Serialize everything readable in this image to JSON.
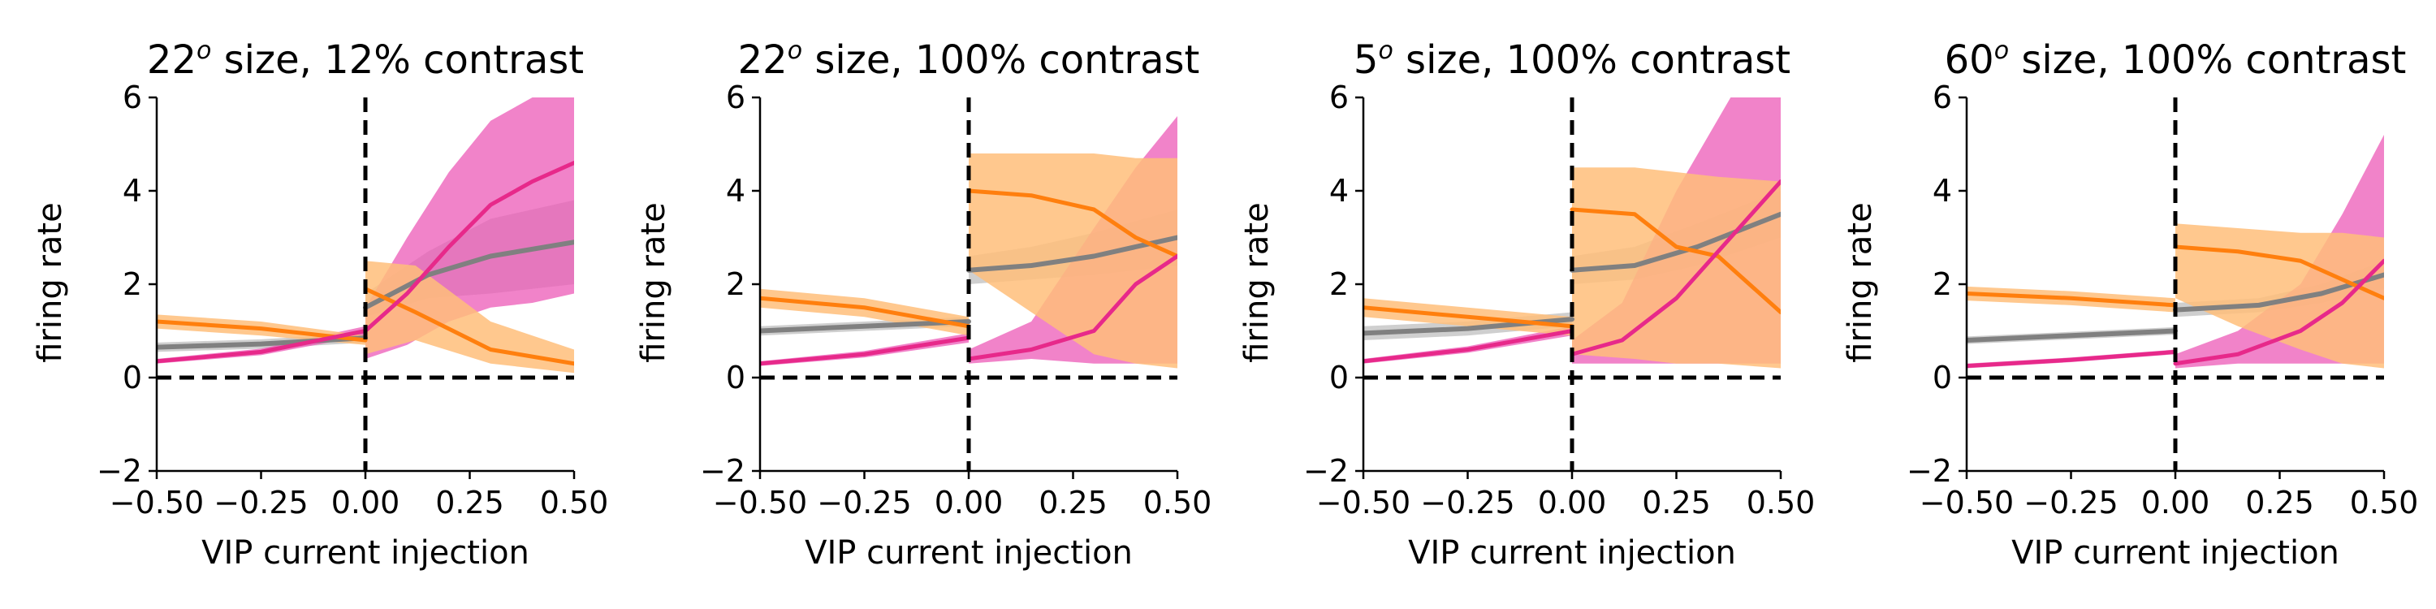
{
  "colors": {
    "gray": "#808080",
    "gray_band": "#bfbfbf",
    "orange": "#ff7f0e",
    "orange_band": "#ffbe7a",
    "magenta": "#e7298a",
    "magenta_band": "#ec5ab7",
    "overlap_band": "#f2607a",
    "axis": "#000000",
    "dashed": "#000000"
  },
  "chart_data": [
    {
      "type": "line",
      "title_main": "22",
      "title_sup": "o",
      "title_rest": " size, 12% contrast",
      "xlabel": "VIP current injection",
      "ylabel": "firing rate",
      "xlim": [
        -0.5,
        0.5
      ],
      "ylim": [
        -2,
        6
      ],
      "xticks": [
        "−0.50",
        "−0.25",
        "0.00",
        "0.25",
        "0.50"
      ],
      "yticks": [
        "−2",
        "0",
        "2",
        "4",
        "6"
      ],
      "series": [
        {
          "color": "gray",
          "neg": {
            "x": [
              -0.5,
              -0.25,
              0
            ],
            "y": [
              0.65,
              0.72,
              0.85
            ],
            "lo": [
              0.55,
              0.62,
              0.75
            ],
            "hi": [
              0.75,
              0.82,
              0.95
            ]
          },
          "pos": {
            "x": [
              0,
              0.15,
              0.3,
              0.5
            ],
            "y": [
              1.5,
              2.2,
              2.6,
              2.9
            ],
            "lo": [
              1.3,
              1.7,
              1.8,
              2.0
            ],
            "hi": [
              1.8,
              2.7,
              3.4,
              3.8
            ]
          }
        },
        {
          "color": "orange",
          "neg": {
            "x": [
              -0.5,
              -0.25,
              0
            ],
            "y": [
              1.2,
              1.05,
              0.8
            ],
            "lo": [
              1.05,
              0.9,
              0.7
            ],
            "hi": [
              1.35,
              1.2,
              0.9
            ]
          },
          "pos": {
            "x": [
              0,
              0.12,
              0.3,
              0.5
            ],
            "y": [
              1.9,
              1.4,
              0.6,
              0.3
            ],
            "lo": [
              0.5,
              0.8,
              0.3,
              0.1
            ],
            "hi": [
              2.5,
              2.4,
              1.2,
              0.6
            ]
          }
        },
        {
          "color": "magenta",
          "neg": {
            "x": [
              -0.5,
              -0.25,
              0
            ],
            "y": [
              0.35,
              0.55,
              1.0
            ],
            "lo": [
              0.3,
              0.48,
              0.9
            ],
            "hi": [
              0.4,
              0.62,
              1.1
            ]
          },
          "pos": {
            "x": [
              0,
              0.1,
              0.2,
              0.3,
              0.4,
              0.5
            ],
            "y": [
              1.0,
              1.8,
              2.8,
              3.7,
              4.2,
              4.6
            ],
            "lo": [
              0.4,
              0.7,
              1.2,
              1.5,
              1.6,
              1.8
            ],
            "hi": [
              1.5,
              3.0,
              4.4,
              5.5,
              6.0,
              6.5
            ]
          }
        }
      ]
    },
    {
      "type": "line",
      "title_main": "22",
      "title_sup": "o",
      "title_rest": " size, 100% contrast",
      "xlabel": "VIP current injection",
      "ylabel": "firing rate",
      "xlim": [
        -0.5,
        0.5
      ],
      "ylim": [
        -2,
        6
      ],
      "xticks": [
        "−0.50",
        "−0.25",
        "0.00",
        "0.25",
        "0.50"
      ],
      "yticks": [
        "−2",
        "0",
        "2",
        "4",
        "6"
      ],
      "series": [
        {
          "color": "gray",
          "neg": {
            "x": [
              -0.5,
              -0.25,
              0
            ],
            "y": [
              1.0,
              1.1,
              1.2
            ],
            "lo": [
              0.9,
              1.0,
              1.1
            ],
            "hi": [
              1.1,
              1.2,
              1.3
            ]
          },
          "pos": {
            "x": [
              0,
              0.15,
              0.3,
              0.5
            ],
            "y": [
              2.3,
              2.4,
              2.6,
              3.0
            ],
            "lo": [
              2.0,
              2.1,
              2.2,
              2.4
            ],
            "hi": [
              2.6,
              2.8,
              3.1,
              3.6
            ]
          }
        },
        {
          "color": "orange",
          "neg": {
            "x": [
              -0.5,
              -0.25,
              0
            ],
            "y": [
              1.7,
              1.5,
              1.1
            ],
            "lo": [
              1.5,
              1.3,
              0.9
            ],
            "hi": [
              1.9,
              1.7,
              1.3
            ]
          },
          "pos": {
            "x": [
              0,
              0.15,
              0.3,
              0.4,
              0.5
            ],
            "y": [
              4.0,
              3.9,
              3.6,
              3.0,
              2.6
            ],
            "lo": [
              2.3,
              1.4,
              0.5,
              0.3,
              0.2
            ],
            "hi": [
              4.8,
              4.8,
              4.8,
              4.7,
              4.7
            ]
          }
        },
        {
          "color": "magenta",
          "neg": {
            "x": [
              -0.5,
              -0.25,
              0
            ],
            "y": [
              0.3,
              0.5,
              0.85
            ],
            "lo": [
              0.25,
              0.43,
              0.75
            ],
            "hi": [
              0.35,
              0.57,
              0.95
            ]
          },
          "pos": {
            "x": [
              0,
              0.15,
              0.3,
              0.4,
              0.5
            ],
            "y": [
              0.4,
              0.6,
              1.0,
              2.0,
              2.6
            ],
            "lo": [
              0.3,
              0.4,
              0.3,
              0.3,
              0.3
            ],
            "hi": [
              0.6,
              1.2,
              3.2,
              4.5,
              5.6
            ]
          }
        }
      ]
    },
    {
      "type": "line",
      "title_main": "5",
      "title_sup": "o",
      "title_rest": " size, 100% contrast",
      "xlabel": "VIP current injection",
      "ylabel": "firing rate",
      "xlim": [
        -0.5,
        0.5
      ],
      "ylim": [
        -2,
        6
      ],
      "xticks": [
        "−0.50",
        "−0.25",
        "0.00",
        "0.25",
        "0.50"
      ],
      "yticks": [
        "−2",
        "0",
        "2",
        "4",
        "6"
      ],
      "series": [
        {
          "color": "gray",
          "neg": {
            "x": [
              -0.5,
              -0.25,
              0
            ],
            "y": [
              0.95,
              1.05,
              1.25
            ],
            "lo": [
              0.8,
              0.9,
              1.1
            ],
            "hi": [
              1.1,
              1.2,
              1.4
            ]
          },
          "pos": {
            "x": [
              0,
              0.15,
              0.3,
              0.5
            ],
            "y": [
              2.3,
              2.4,
              2.8,
              3.5
            ],
            "lo": [
              2.0,
              2.1,
              2.4,
              3.0
            ],
            "hi": [
              2.6,
              2.8,
              3.3,
              4.0
            ]
          }
        },
        {
          "color": "orange",
          "neg": {
            "x": [
              -0.5,
              -0.25,
              0
            ],
            "y": [
              1.5,
              1.3,
              1.1
            ],
            "lo": [
              1.3,
              1.1,
              0.9
            ],
            "hi": [
              1.7,
              1.5,
              1.3
            ]
          },
          "pos": {
            "x": [
              0,
              0.15,
              0.25,
              0.35,
              0.5
            ],
            "y": [
              3.6,
              3.5,
              2.8,
              2.6,
              1.4
            ],
            "lo": [
              0.5,
              0.4,
              0.3,
              0.3,
              0.2
            ],
            "hi": [
              4.5,
              4.5,
              4.4,
              4.3,
              4.2
            ]
          }
        },
        {
          "color": "magenta",
          "neg": {
            "x": [
              -0.5,
              -0.25,
              0
            ],
            "y": [
              0.35,
              0.6,
              1.0
            ],
            "lo": [
              0.3,
              0.53,
              0.9
            ],
            "hi": [
              0.4,
              0.67,
              1.1
            ]
          },
          "pos": {
            "x": [
              0,
              0.12,
              0.25,
              0.38,
              0.5
            ],
            "y": [
              0.5,
              0.8,
              1.7,
              3.0,
              4.2
            ],
            "lo": [
              0.3,
              0.3,
              0.3,
              0.3,
              0.3
            ],
            "hi": [
              0.8,
              1.6,
              4.0,
              6.0,
              7.0
            ]
          }
        }
      ]
    },
    {
      "type": "line",
      "title_main": "60",
      "title_sup": "o",
      "title_rest": " size, 100% contrast",
      "xlabel": "VIP current injection",
      "ylabel": "firing rate",
      "xlim": [
        -0.5,
        0.5
      ],
      "ylim": [
        -2,
        6
      ],
      "xticks": [
        "−0.50",
        "−0.25",
        "0.00",
        "0.25",
        "0.50"
      ],
      "yticks": [
        "−2",
        "0",
        "2",
        "4",
        "6"
      ],
      "series": [
        {
          "color": "gray",
          "neg": {
            "x": [
              -0.5,
              -0.25,
              0
            ],
            "y": [
              0.8,
              0.9,
              1.0
            ],
            "lo": [
              0.72,
              0.82,
              0.92
            ],
            "hi": [
              0.88,
              0.98,
              1.08
            ]
          },
          "pos": {
            "x": [
              0,
              0.2,
              0.35,
              0.5
            ],
            "y": [
              1.45,
              1.55,
              1.8,
              2.2
            ],
            "lo": [
              1.3,
              1.4,
              1.6,
              1.9
            ],
            "hi": [
              1.6,
              1.7,
              2.0,
              2.5
            ]
          }
        },
        {
          "color": "orange",
          "neg": {
            "x": [
              -0.5,
              -0.25,
              0
            ],
            "y": [
              1.8,
              1.7,
              1.55
            ],
            "lo": [
              1.65,
              1.55,
              1.4
            ],
            "hi": [
              1.95,
              1.85,
              1.7
            ]
          },
          "pos": {
            "x": [
              0,
              0.15,
              0.3,
              0.4,
              0.5
            ],
            "y": [
              2.8,
              2.7,
              2.5,
              2.1,
              1.7
            ],
            "lo": [
              1.7,
              1.1,
              0.6,
              0.3,
              0.2
            ],
            "hi": [
              3.3,
              3.2,
              3.1,
              3.1,
              3.0
            ]
          }
        },
        {
          "color": "magenta",
          "neg": {
            "x": [
              -0.5,
              -0.25,
              0
            ],
            "y": [
              0.25,
              0.38,
              0.55
            ],
            "lo": [
              0.2,
              0.33,
              0.5
            ],
            "hi": [
              0.3,
              0.43,
              0.6
            ]
          },
          "pos": {
            "x": [
              0,
              0.15,
              0.3,
              0.4,
              0.5
            ],
            "y": [
              0.3,
              0.5,
              1.0,
              1.6,
              2.5
            ],
            "lo": [
              0.2,
              0.3,
              0.3,
              0.3,
              0.3
            ],
            "hi": [
              0.5,
              1.0,
              2.0,
              3.5,
              5.2
            ]
          }
        }
      ]
    }
  ]
}
